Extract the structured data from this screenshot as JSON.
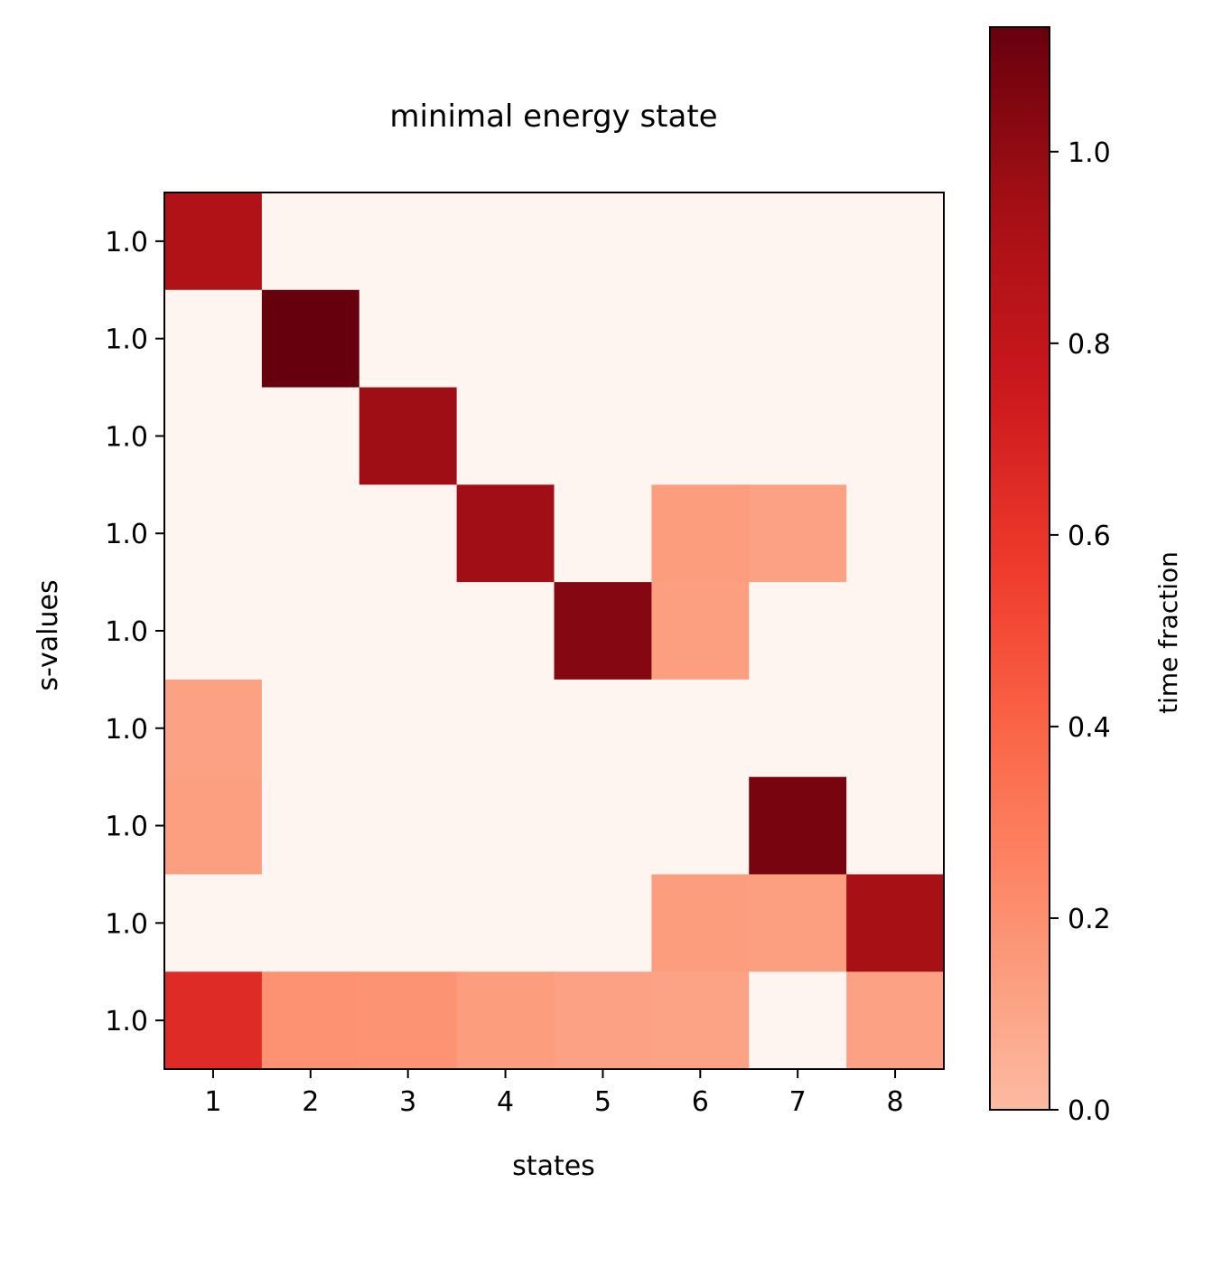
{
  "chart_data": {
    "type": "heatmap",
    "title": "minimal energy state",
    "xlabel": "states",
    "ylabel": "s-values",
    "x_tick_labels": [
      "1",
      "2",
      "3",
      "4",
      "5",
      "6",
      "7",
      "8"
    ],
    "y_tick_labels": [
      "1.0",
      "1.0",
      "1.0",
      "1.0",
      "1.0",
      "1.0",
      "1.0",
      "1.0",
      "1.0"
    ],
    "values": [
      [
        0.88,
        0.0,
        0.0,
        0.0,
        0.0,
        0.0,
        0.0,
        0.0
      ],
      [
        0.0,
        1.13,
        0.0,
        0.0,
        0.0,
        0.0,
        0.0,
        0.0
      ],
      [
        0.0,
        0.0,
        0.96,
        0.0,
        0.0,
        0.0,
        0.0,
        0.0
      ],
      [
        0.0,
        0.0,
        0.0,
        0.95,
        0.0,
        0.14,
        0.12,
        0.0
      ],
      [
        0.0,
        0.0,
        0.0,
        0.0,
        1.04,
        0.13,
        0.0,
        0.0
      ],
      [
        0.12,
        0.0,
        0.0,
        0.0,
        0.0,
        0.0,
        0.0,
        0.0
      ],
      [
        0.13,
        0.0,
        0.0,
        0.0,
        0.0,
        0.0,
        1.08,
        0.0
      ],
      [
        0.0,
        0.0,
        0.0,
        0.0,
        0.0,
        0.14,
        0.13,
        0.93
      ],
      [
        0.65,
        0.19,
        0.18,
        0.14,
        0.12,
        0.11,
        0.0,
        0.12
      ]
    ],
    "colormap": "Reds",
    "colorbar": {
      "label": "time fraction",
      "range": [
        0.0,
        1.13
      ],
      "ticks": [
        0.0,
        0.2,
        0.4,
        0.6,
        0.8,
        1.0
      ],
      "tick_labels": [
        "0.0",
        "0.2",
        "0.4",
        "0.6",
        "0.8",
        "1.0"
      ]
    },
    "grid": false
  }
}
